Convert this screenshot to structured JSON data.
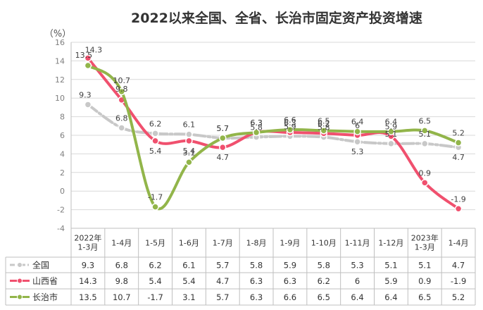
{
  "chart_data": {
    "type": "line",
    "title": "2022以来全国、全省、长治市固定资产投资增速",
    "ylabel": "（%）",
    "ylim": [
      -4,
      16
    ],
    "yticks": [
      -4,
      -2,
      0,
      2,
      4,
      6,
      8,
      10,
      12,
      14,
      16
    ],
    "grid": true,
    "legend": "data-table-left",
    "categories": [
      [
        "2022年",
        "1-3月"
      ],
      [
        "1-4月"
      ],
      [
        "1-5月"
      ],
      [
        "1-6月"
      ],
      [
        "1-7月"
      ],
      [
        "1-8月"
      ],
      [
        "1-9月"
      ],
      [
        "1-10月"
      ],
      [
        "1-11月"
      ],
      [
        "1-12月"
      ],
      [
        "2023年",
        "1-3月"
      ],
      [
        "1-4月"
      ]
    ],
    "series": [
      {
        "name": "全国",
        "color": "#c8c8c8",
        "style": "dash-dot",
        "values": [
          9.3,
          6.8,
          6.2,
          6.1,
          5.7,
          5.8,
          5.9,
          5.8,
          5.3,
          5.1,
          5.1,
          4.7
        ]
      },
      {
        "name": "山西省",
        "color": "#f0506e",
        "style": "solid",
        "values": [
          14.3,
          9.8,
          5.4,
          5.4,
          4.7,
          6.3,
          6.3,
          6.2,
          6,
          5.9,
          0.9,
          -1.9
        ]
      },
      {
        "name": "长治市",
        "color": "#92b54a",
        "style": "solid",
        "values": [
          13.5,
          10.7,
          -1.7,
          3.1,
          5.7,
          6.3,
          6.6,
          6.5,
          6.4,
          6.4,
          6.5,
          5.2
        ]
      }
    ]
  }
}
